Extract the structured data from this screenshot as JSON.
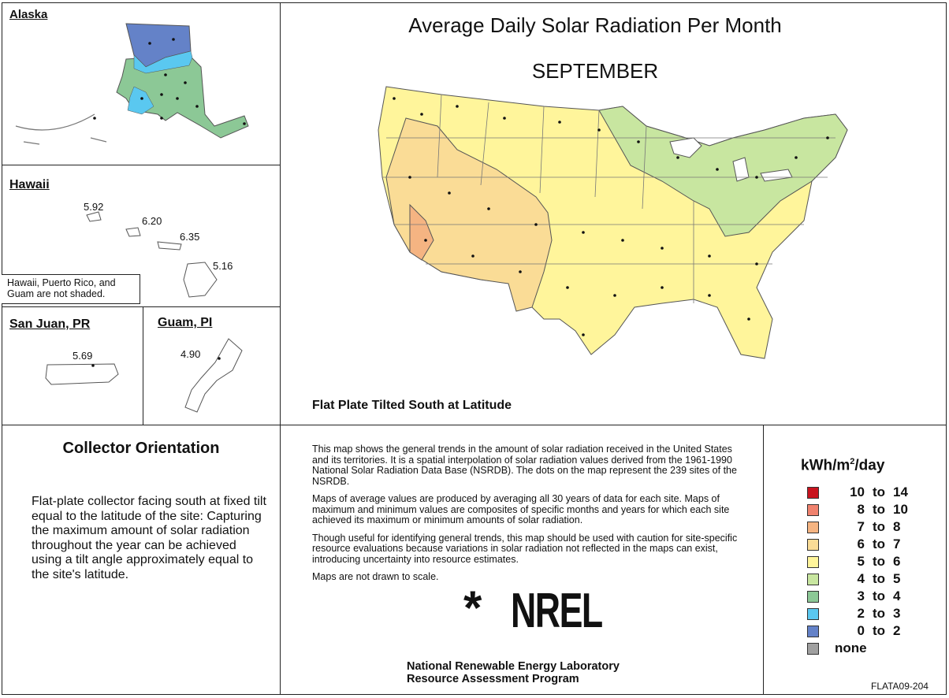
{
  "map_title": "Average Daily Solar Radiation Per Month",
  "month": "SEPTEMBER",
  "orientation_label": "Flat Plate Tilted South at Latitude",
  "insets": {
    "alaska": {
      "title": "Alaska"
    },
    "hawaii": {
      "title": "Hawaii",
      "values": [
        "5.92",
        "6.20",
        "6.35",
        "5.16"
      ],
      "note": "Hawaii, Puerto Rico, and Guam are not shaded."
    },
    "san_juan": {
      "title": "San Juan, PR",
      "value": "5.69"
    },
    "guam": {
      "title": "Guam, PI",
      "value": "4.90"
    }
  },
  "collector": {
    "heading": "Collector Orientation",
    "text": "Flat-plate collector facing south at fixed tilt equal to the latitude of the site:  Capturing the maximum amount of solar radiation throughout the year can be achieved using a tilt angle approximately equal to the site's latitude."
  },
  "description": {
    "p1": "This map shows the general trends in the amount of solar radiation received in the United States and its territories.  It is a spatial interpolation of solar radiation values derived from the 1961-1990 National Solar Radiation Data Base (NSRDB).  The dots on the map represent the 239 sites of the NSRDB.",
    "p2": "Maps of average values are produced by averaging all 30 years of data for each site. Maps of maximum and minimum values are composites of specific months and years for which each site achieved its maximum or minimum amounts of solar radiation.",
    "p3": "Though useful for identifying general trends, this map should be used with caution for site-specific resource evaluations because variations in solar radiation not reflected in the maps can exist, introducing uncertainty into resource estimates.",
    "p4": "Maps are not drawn to scale."
  },
  "logo": {
    "text": "NREL",
    "mark": "*"
  },
  "org": {
    "line1": "National Renewable Energy Laboratory",
    "line2": "Resource Assessment Program"
  },
  "legend": {
    "unit_prefix": "kWh/m",
    "unit_sup": "2",
    "unit_suffix": "/day",
    "items": [
      {
        "from": "10",
        "to_word": "to",
        "to": "14",
        "color": "#c8141e"
      },
      {
        "from": "8",
        "to_word": "to",
        "to": "10",
        "color": "#f0826e"
      },
      {
        "from": "7",
        "to_word": "to",
        "to": "8",
        "color": "#f5b482"
      },
      {
        "from": "6",
        "to_word": "to",
        "to": "7",
        "color": "#fadc96"
      },
      {
        "from": "5",
        "to_word": "to",
        "to": "6",
        "color": "#fff59b"
      },
      {
        "from": "4",
        "to_word": "to",
        "to": "5",
        "color": "#c8e6a0"
      },
      {
        "from": "3",
        "to_word": "to",
        "to": "4",
        "color": "#8cc896"
      },
      {
        "from": "2",
        "to_word": "to",
        "to": "3",
        "color": "#5ac8f0"
      },
      {
        "from": "0",
        "to_word": "to",
        "to": "2",
        "color": "#6482c8"
      },
      {
        "from": "none",
        "to_word": "",
        "to": "",
        "color": "#a0a0a0"
      }
    ]
  },
  "map_id": "FLATA09-204"
}
